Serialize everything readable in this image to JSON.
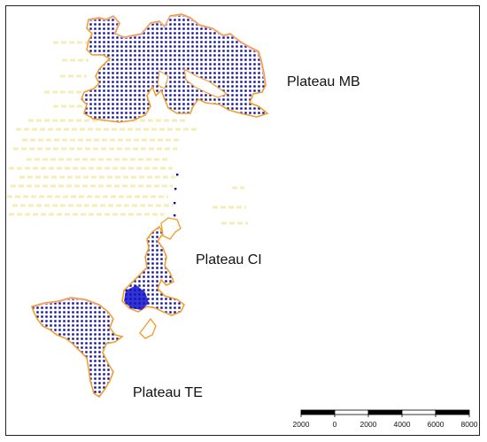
{
  "plateaus": [
    {
      "id": "mb",
      "label": "Plateau MB"
    },
    {
      "id": "ci",
      "label": "Plateau CI"
    },
    {
      "id": "te",
      "label": "Plateau TE"
    }
  ],
  "scale_bar": {
    "tick_labels": [
      "2000",
      "0",
      "2000",
      "4000",
      "6000",
      "8000"
    ]
  },
  "colors": {
    "outline": "#f0a030",
    "outline_inner": "#f2c0c0",
    "dot": "#0a0a9a",
    "dense": "#1010c8",
    "faint_lines": "#f7f0b8",
    "frame": "#222222"
  }
}
